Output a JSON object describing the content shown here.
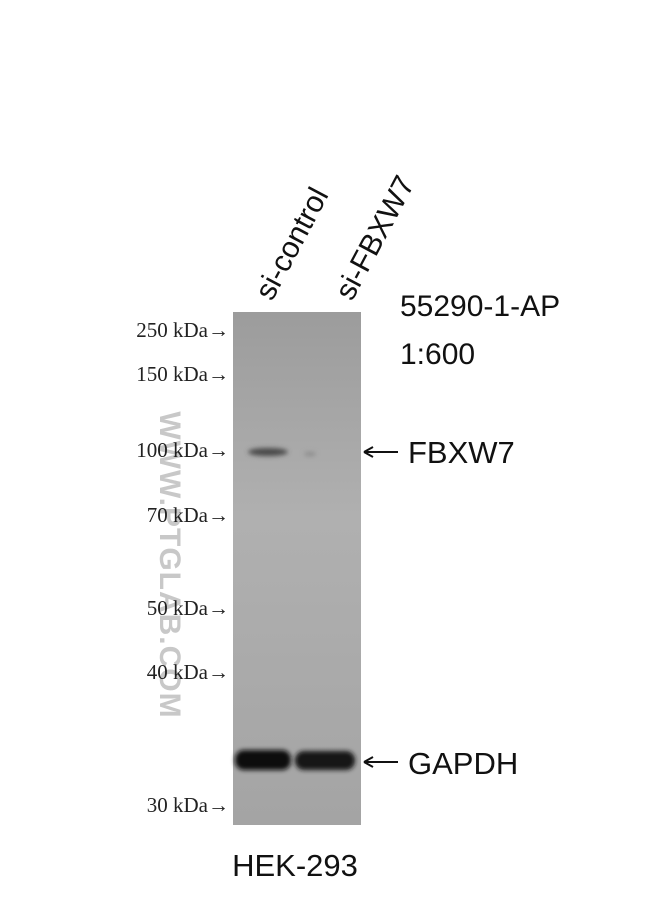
{
  "lanes": [
    "si-control",
    "si-FBXW7"
  ],
  "antibody": {
    "catalog": "55290-1-AP",
    "dilution": "1:600"
  },
  "markers": [
    "250 kDa→",
    "150 kDa→",
    "100 kDa→",
    "70 kDa→",
    "50 kDa→",
    "40 kDa→",
    "30 kDa→"
  ],
  "bands": [
    "FBXW7",
    "GAPDH"
  ],
  "cell_line": "HEK-293",
  "watermark": "WWW.PTGLAB.COM"
}
